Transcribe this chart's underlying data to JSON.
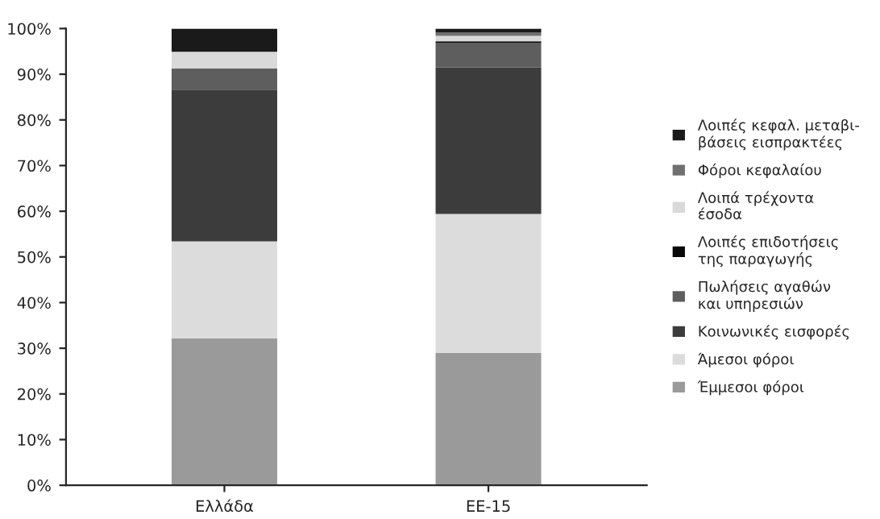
{
  "chart_data": {
    "type": "bar",
    "stacked": true,
    "categories": [
      "Ελλάδα",
      "ΕΕ-15"
    ],
    "series": [
      {
        "name": "Έμμεσοι φόροι",
        "color": "#9a9a9a",
        "values": [
          32.2,
          29.0
        ]
      },
      {
        "name": "Άμεσοι φόροι",
        "color": "#dcdcdc",
        "values": [
          21.2,
          30.4
        ]
      },
      {
        "name": "Κοινωνικές εισφορές",
        "color": "#3c3c3c",
        "values": [
          33.2,
          32.1
        ]
      },
      {
        "name": "Πωλήσεις αγαθών\nκαι υπηρεσιών",
        "color": "#5e5e5e",
        "values": [
          4.4,
          5.4
        ]
      },
      {
        "name": "Λοιπές επιδοτήσεις\nτης παραγωγής",
        "color": "#080808",
        "values": [
          0.2,
          0.3
        ]
      },
      {
        "name": "Λοιπά τρέχοντα\nέσοδα",
        "color": "#d9d9d9",
        "values": [
          3.7,
          1.2
        ]
      },
      {
        "name": "Φόροι κεφαλαίου",
        "color": "#707070",
        "values": [
          0,
          0.7
        ]
      },
      {
        "name": "Λοιπές κεφαλ. μεταβι-\nβάσεις εισπρακτέες",
        "color": "#1a1a1a",
        "values": [
          5.1,
          0.9
        ]
      }
    ],
    "ylim": [
      0,
      100
    ],
    "yticks": [
      {
        "value": 0,
        "label": "0%"
      },
      {
        "value": 10,
        "label": "10%"
      },
      {
        "value": 20,
        "label": "20%"
      },
      {
        "value": 30,
        "label": "30%"
      },
      {
        "value": 40,
        "label": "40%"
      },
      {
        "value": 50,
        "label": "50%"
      },
      {
        "value": 60,
        "label": "60%"
      },
      {
        "value": 70,
        "label": "70%"
      },
      {
        "value": 80,
        "label": "80%"
      },
      {
        "value": 90,
        "label": "90%"
      },
      {
        "value": 100,
        "label": "100%"
      }
    ],
    "grid": false,
    "legend": "right"
  }
}
